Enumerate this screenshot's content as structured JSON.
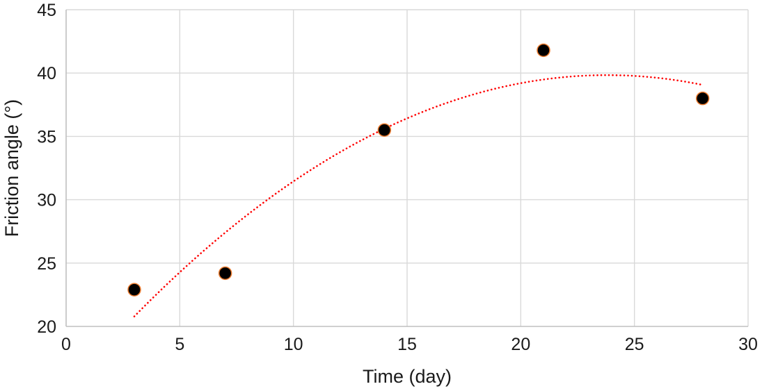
{
  "chart_data": {
    "type": "scatter",
    "title": "",
    "xlabel": "Time (day)",
    "ylabel": "Friction angle (°)",
    "x": [
      3,
      7,
      14,
      21,
      28
    ],
    "y": [
      22.9,
      24.2,
      35.5,
      41.8,
      38.0
    ],
    "xlim": [
      0,
      30
    ],
    "ylim": [
      20,
      45
    ],
    "xticks": [
      0,
      5,
      10,
      15,
      20,
      25,
      30
    ],
    "yticks": [
      20,
      25,
      30,
      35,
      40,
      45
    ],
    "grid": true,
    "legend": "none",
    "point_color": "#000000",
    "point_edge_color": "#ed7d31",
    "point_radius": 9,
    "trendline": {
      "type": "polynomial",
      "degree": 2,
      "equation": "y = -0.044x^2 + 2.095x + 14.9",
      "coefficients": {
        "a2": -0.044,
        "a1": 2.095,
        "a0": 14.9
      },
      "x_start": 3,
      "x_end": 28,
      "color": "#ff0000",
      "style": "dotted"
    },
    "colors": {
      "gridline": "#d9d9d9",
      "axis_line": "#bfbfbf",
      "text": "#1a1a1a"
    }
  }
}
